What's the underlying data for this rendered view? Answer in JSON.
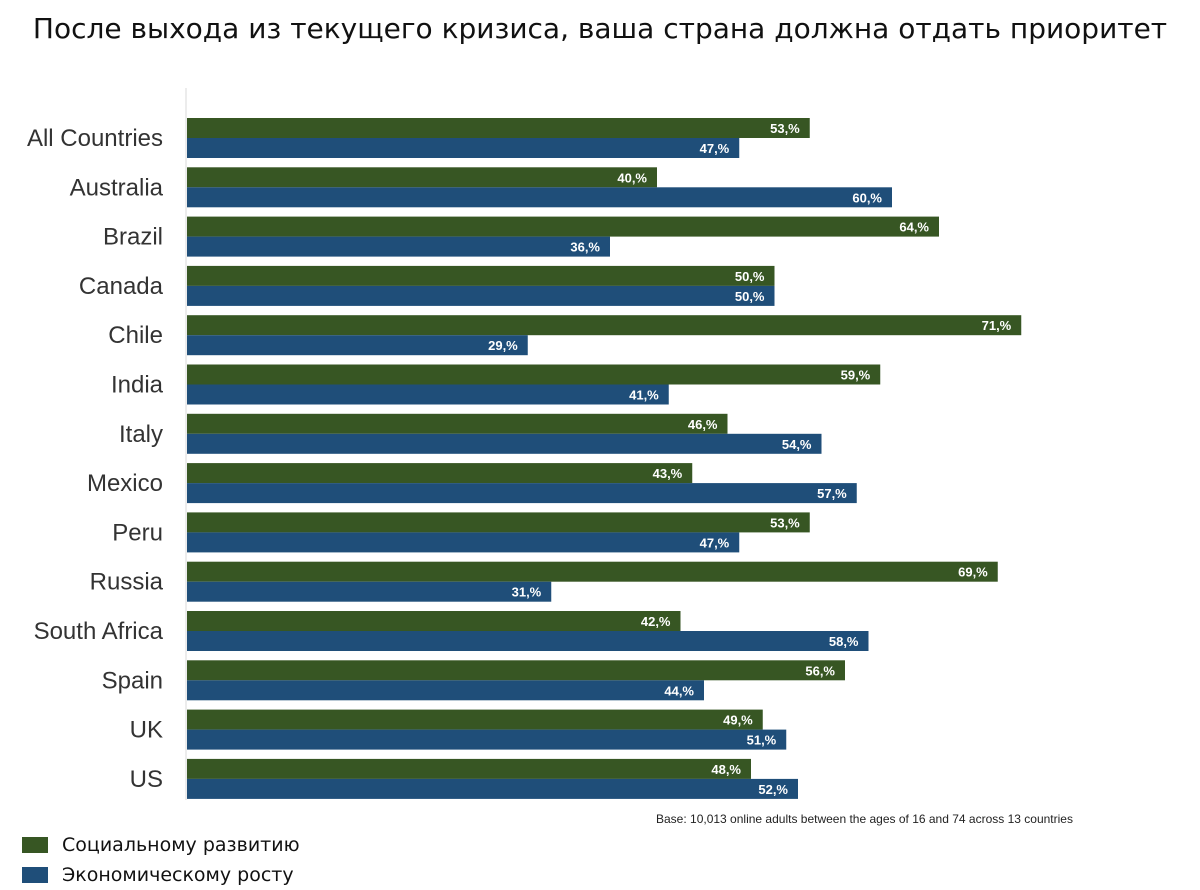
{
  "chart_data": {
    "type": "bar",
    "orientation": "horizontal",
    "title": "После выхода из текущего кризиса, ваша страна должна отдать приоритет",
    "note": "Base: 10,013 online adults between the ages of 16 and 74 across 13 countries",
    "categories": [
      "All Countries",
      "Australia",
      "Brazil",
      "Canada",
      "Chile",
      "India",
      "Italy",
      "Mexico",
      "Peru",
      "Russia",
      "South Africa",
      "Spain",
      "UK",
      "US"
    ],
    "series": [
      {
        "name": "Социальному развитию",
        "color": "#375623",
        "values": [
          53,
          40,
          64,
          50,
          71,
          59,
          46,
          43,
          53,
          69,
          42,
          56,
          49,
          48
        ],
        "labels": [
          "53,%",
          "40,%",
          "64,%",
          "50,%",
          "71,%",
          "59,%",
          "46,%",
          "43,%",
          "53,%",
          "69,%",
          "42,%",
          "56,%",
          "49,%",
          "48,%"
        ]
      },
      {
        "name": "Экономическому росту",
        "color": "#1F4E79",
        "values": [
          47,
          60,
          36,
          50,
          29,
          41,
          54,
          57,
          47,
          31,
          58,
          44,
          51,
          52
        ],
        "labels": [
          "47,%",
          "60,%",
          "36,%",
          "50,%",
          "29,%",
          "41,%",
          "54,%",
          "57,%",
          "47,%",
          "31,%",
          "58,%",
          "44,%",
          "51,%",
          "52,%"
        ]
      }
    ],
    "value_unit": "%",
    "xlim": [
      0,
      71
    ],
    "legend_position": "bottom-left",
    "grid": false
  }
}
